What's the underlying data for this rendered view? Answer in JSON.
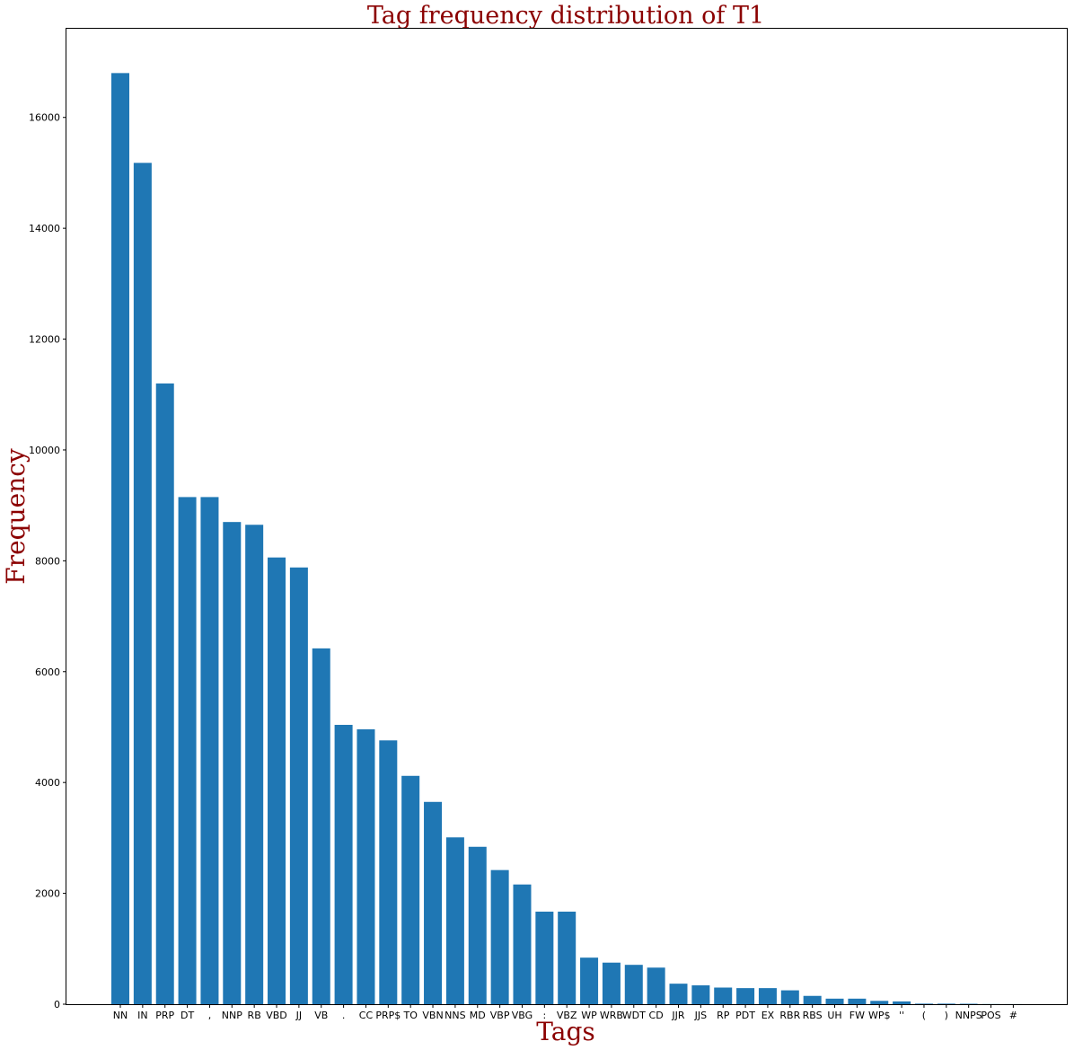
{
  "chart_data": {
    "type": "bar",
    "title": "Tag frequency distribution of T1",
    "xlabel": "Tags",
    "ylabel": "Frequency",
    "categories": [
      "NN",
      "IN",
      "PRP",
      "DT",
      ",",
      "NNP",
      "RB",
      "VBD",
      "JJ",
      "VB",
      ".",
      "CC",
      "PRP$",
      "TO",
      "VBN",
      "NNS",
      "MD",
      "VBP",
      "VBG",
      ":",
      "VBZ",
      "WP",
      "WRB",
      "WDT",
      "CD",
      "JJR",
      "JJS",
      "RP",
      "PDT",
      "EX",
      "RBR",
      "RBS",
      "UH",
      "FW",
      "WP$",
      "''",
      "(",
      ")",
      "NNPS",
      "POS",
      "#"
    ],
    "values": [
      16800,
      15180,
      11200,
      9150,
      9150,
      8700,
      8650,
      8060,
      7880,
      6420,
      5040,
      4960,
      4760,
      4120,
      3650,
      3010,
      2840,
      2420,
      2160,
      1670,
      1670,
      840,
      750,
      710,
      660,
      370,
      340,
      300,
      290,
      290,
      250,
      150,
      100,
      100,
      60,
      50,
      10,
      10,
      8,
      3,
      2
    ],
    "yticks": [
      0,
      2000,
      4000,
      6000,
      8000,
      10000,
      12000,
      14000,
      16000
    ],
    "ylim": [
      0,
      17600
    ],
    "grid": false,
    "legend": "none",
    "colors": {
      "bar": "#1f77b4",
      "title": "#8b0000",
      "axis_label": "#8b0000",
      "axis": "#000000"
    }
  }
}
